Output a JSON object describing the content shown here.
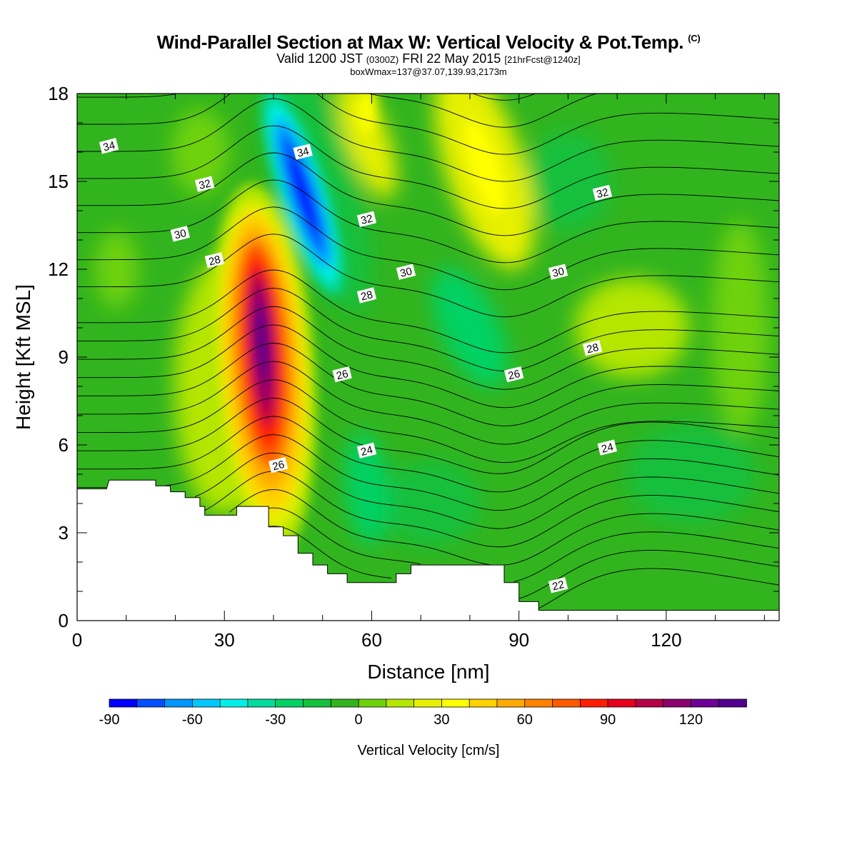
{
  "title": {
    "line1": "Wind-Parallel Section at Max W: Vertical Velocity & Pot.Temp.",
    "copyright": "(C)",
    "line2_a": "Valid 1200 JST",
    "line2_b": "(0300Z)",
    "line2_c": "FRI 22 May 2015",
    "line2_d": "[21hrFcst@1240z]",
    "line3": "boxWmax=137@37.07,139.93,2173m"
  },
  "chart_data": {
    "type": "heatmap",
    "xlabel": "Distance [nm]",
    "ylabel": "Height [Kft MSL]",
    "xlim": [
      0,
      143
    ],
    "ylim": [
      0,
      18
    ],
    "x_ticks": [
      0,
      30,
      60,
      90,
      120
    ],
    "y_ticks": [
      0,
      3,
      6,
      9,
      12,
      15,
      18
    ],
    "colorbar": {
      "label": "Vertical Velocity [cm/s]",
      "tick_values": [
        -90,
        -60,
        -30,
        0,
        30,
        60,
        90,
        120
      ],
      "bins": [
        -90,
        -80,
        -70,
        -60,
        -50,
        -40,
        -30,
        -20,
        -10,
        0,
        10,
        20,
        30,
        40,
        50,
        60,
        70,
        80,
        90,
        100,
        110,
        120,
        130,
        140
      ],
      "colors": [
        "#0000ff",
        "#0050ff",
        "#0096ff",
        "#00c8ff",
        "#00f0e8",
        "#00dca0",
        "#00d264",
        "#14c03c",
        "#32b41e",
        "#6ed20a",
        "#b4e600",
        "#e6f000",
        "#ffff00",
        "#ffd200",
        "#ffaa00",
        "#ff8200",
        "#ff5a00",
        "#ff1e00",
        "#e6001e",
        "#b40046",
        "#8c006e",
        "#6e0096",
        "#50008c"
      ]
    },
    "vertical_velocity_features": [
      {
        "label": "updraft core",
        "x": 39,
        "y": 9,
        "w": 137
      },
      {
        "label": "downdraft core",
        "x": 46,
        "y": 14.8,
        "w": -95
      },
      {
        "label": "updraft aloft",
        "x": 83,
        "y": 15.5,
        "w": 35
      },
      {
        "label": "updraft aloft",
        "x": 59,
        "y": 17.5,
        "w": 30
      },
      {
        "label": "weak updraft",
        "x": 113,
        "y": 10,
        "w": 15
      },
      {
        "label": "weak downdraft",
        "x": 80,
        "y": 10,
        "w": -25
      },
      {
        "label": "weak downdraft",
        "x": 59,
        "y": 4.5,
        "w": -30
      }
    ],
    "potential_temperature_contours": {
      "levels_labeled": [
        22,
        24,
        26,
        28,
        30,
        32,
        34
      ],
      "labels": [
        {
          "text": "34",
          "x": 6.5,
          "y": 16.2
        },
        {
          "text": "34",
          "x": 46,
          "y": 16.0
        },
        {
          "text": "32",
          "x": 26,
          "y": 14.9
        },
        {
          "text": "32",
          "x": 59,
          "y": 13.7
        },
        {
          "text": "32",
          "x": 107,
          "y": 14.6
        },
        {
          "text": "30",
          "x": 21,
          "y": 13.2
        },
        {
          "text": "30",
          "x": 67,
          "y": 11.9
        },
        {
          "text": "30",
          "x": 98,
          "y": 11.9
        },
        {
          "text": "28",
          "x": 28,
          "y": 12.3
        },
        {
          "text": "28",
          "x": 59,
          "y": 11.1
        },
        {
          "text": "28",
          "x": 105,
          "y": 9.3
        },
        {
          "text": "26",
          "x": 54,
          "y": 8.4
        },
        {
          "text": "26",
          "x": 89,
          "y": 8.4
        },
        {
          "text": "26",
          "x": 41,
          "y": 5.3
        },
        {
          "text": "24",
          "x": 59,
          "y": 5.8
        },
        {
          "text": "24",
          "x": 108,
          "y": 5.9
        },
        {
          "text": "22",
          "x": 98,
          "y": 1.2
        }
      ]
    },
    "terrain_top_kft": [
      [
        0,
        4.5
      ],
      [
        2.5,
        4.5
      ],
      [
        2.5,
        4.5
      ],
      [
        6,
        4.5
      ],
      [
        6.5,
        4.8
      ],
      [
        16,
        4.8
      ],
      [
        16,
        4.6
      ],
      [
        19,
        4.6
      ],
      [
        19,
        4.4
      ],
      [
        22,
        4.4
      ],
      [
        22,
        4.2
      ],
      [
        25,
        4.2
      ],
      [
        25,
        3.9
      ],
      [
        26,
        3.9
      ],
      [
        26,
        3.6
      ],
      [
        32.5,
        3.6
      ],
      [
        32.5,
        3.9
      ],
      [
        39,
        3.9
      ],
      [
        39,
        3.2
      ],
      [
        42,
        3.2
      ],
      [
        42,
        2.9
      ],
      [
        45,
        2.9
      ],
      [
        45,
        2.3
      ],
      [
        48,
        2.3
      ],
      [
        48,
        1.9
      ],
      [
        51,
        1.9
      ],
      [
        51,
        1.6
      ],
      [
        55,
        1.6
      ],
      [
        55,
        1.3
      ],
      [
        65,
        1.3
      ],
      [
        65,
        1.6
      ],
      [
        68,
        1.6
      ],
      [
        68,
        1.9
      ],
      [
        87,
        1.9
      ],
      [
        87,
        1.3
      ],
      [
        90,
        1.3
      ],
      [
        90,
        0.65
      ],
      [
        94,
        0.65
      ],
      [
        94,
        0.35
      ],
      [
        143,
        0.35
      ]
    ]
  }
}
